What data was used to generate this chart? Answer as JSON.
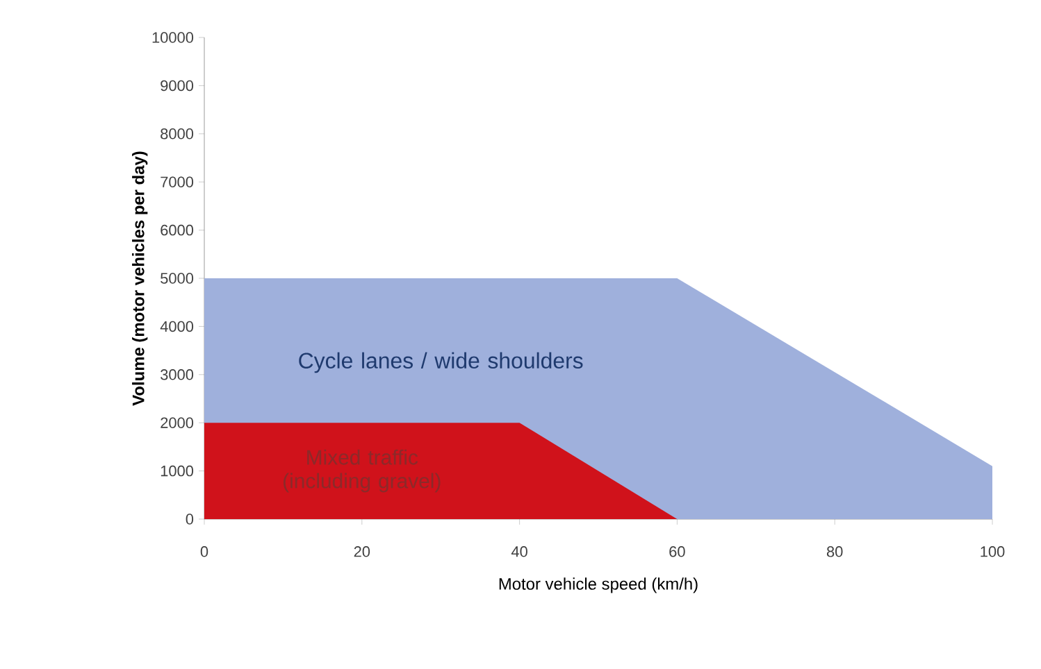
{
  "chart_data": {
    "type": "area",
    "xlabel": "Motor vehicle speed (km/h)",
    "ylabel": "Volume (motor vehicles per day)",
    "series": [
      {
        "name": "Cycle lanes / wide shoulders",
        "color": "#9fb0dc",
        "x": [
          0,
          60,
          100
        ],
        "values": [
          5000,
          5000,
          1100
        ]
      },
      {
        "name": "Mixed traffic (including gravel)",
        "color": "#d0121b",
        "x": [
          0,
          40,
          60
        ],
        "values": [
          2000,
          2000,
          0
        ]
      }
    ],
    "xlim": [
      0,
      100
    ],
    "xticks": [
      0,
      20,
      40,
      60,
      80,
      100
    ],
    "ylim": [
      0,
      10000
    ],
    "yticks": [
      0,
      1000,
      2000,
      3000,
      4000,
      5000,
      6000,
      7000,
      8000,
      9000,
      10000
    ],
    "grid": false,
    "legend": false
  }
}
